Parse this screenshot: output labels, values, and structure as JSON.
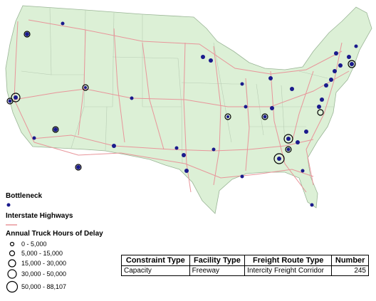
{
  "legend": {
    "bottleneck": "Bottleneck",
    "highways": "Interstate Highways",
    "delay_title": "Annual Truck Hours of Delay",
    "delay_classes": [
      "0 - 5,000",
      "5,000 - 15,000",
      "15,000 - 30,000",
      "30,000 - 50,000",
      "50,000 - 88,107"
    ]
  },
  "table": {
    "headers": [
      "Constraint Type",
      "Facility Type",
      "Freight Route Type",
      "Number"
    ],
    "rows": [
      [
        "Capacity",
        "Freeway",
        "Intercity Freight Corridor",
        245
      ]
    ]
  }
}
